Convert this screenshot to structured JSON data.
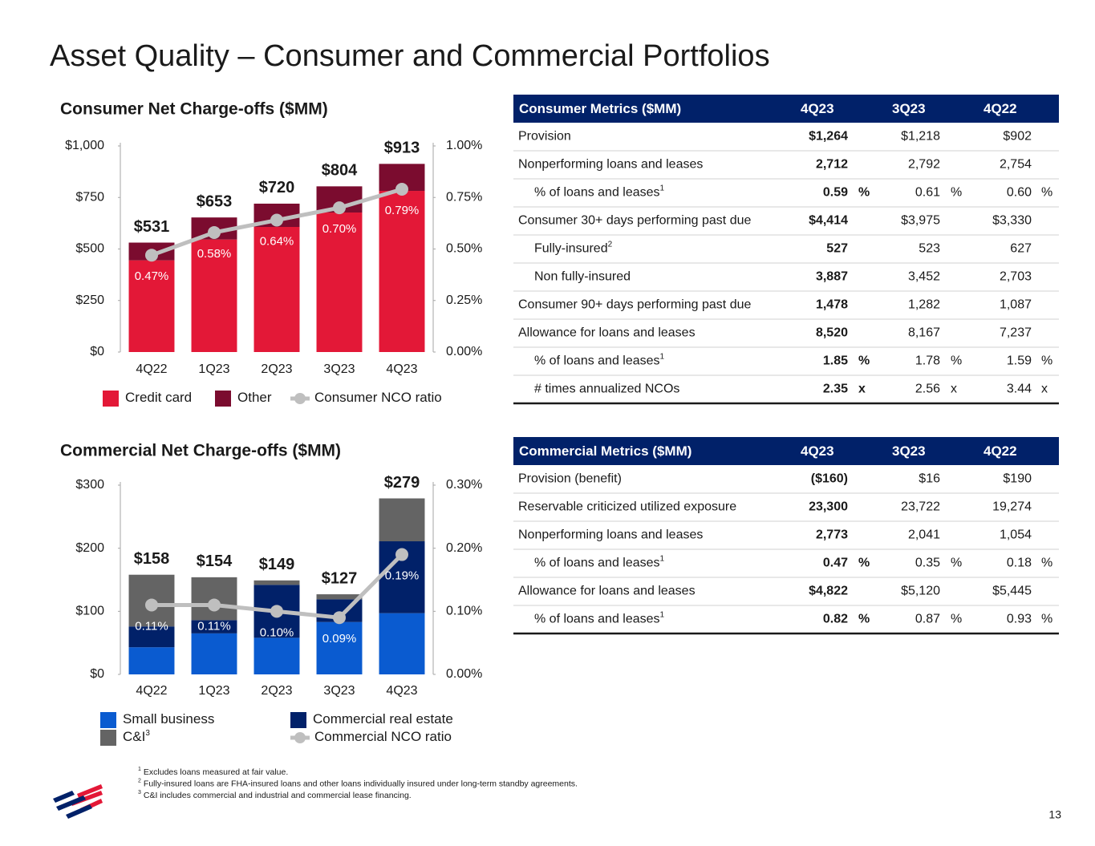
{
  "title": "Asset Quality – Consumer and Commercial Portfolios",
  "chart_data": [
    {
      "type": "bar",
      "stacked": true,
      "title": "Consumer Net Charge-offs ($MM)",
      "categories": [
        "4Q22",
        "1Q23",
        "2Q23",
        "3Q23",
        "4Q23"
      ],
      "series": [
        {
          "name": "Credit card",
          "color": "#e31837",
          "values": [
            445,
            546,
            607,
            677,
            782
          ]
        },
        {
          "name": "Other",
          "color": "#7b0c2f",
          "values": [
            86,
            107,
            113,
            127,
            131
          ]
        },
        {
          "name": "Consumer NCO ratio",
          "type": "line",
          "axis": "y2",
          "color": "#bfbfbf",
          "values": [
            0.47,
            0.58,
            0.64,
            0.7,
            0.79
          ],
          "value_labels": [
            "0.47%",
            "0.58%",
            "0.64%",
            "0.70%",
            "0.79%"
          ]
        }
      ],
      "totals": [
        531,
        653,
        720,
        804,
        913
      ],
      "total_labels": [
        "$531",
        "$653",
        "$720",
        "$804",
        "$913"
      ],
      "ylim": [
        0,
        1000
      ],
      "yticks": [
        {
          "value": 0,
          "label": "$0"
        },
        {
          "value": 250,
          "label": "$250"
        },
        {
          "value": 500,
          "label": "$500"
        },
        {
          "value": 750,
          "label": "$750"
        },
        {
          "value": 1000,
          "label": "$1,000"
        }
      ],
      "y2lim": [
        0,
        1
      ],
      "y2ticks": [
        {
          "value": 0,
          "label": "0.00%"
        },
        {
          "value": 0.25,
          "label": "0.25%"
        },
        {
          "value": 0.5,
          "label": "0.50%"
        },
        {
          "value": 0.75,
          "label": "0.75%"
        },
        {
          "value": 1,
          "label": "1.00%"
        }
      ]
    },
    {
      "type": "bar",
      "stacked": true,
      "title": "Commercial Net Charge-offs ($MM)",
      "categories": [
        "4Q22",
        "1Q23",
        "2Q23",
        "3Q23",
        "4Q23"
      ],
      "series": [
        {
          "name": "Small business",
          "color": "#0a5bd0",
          "values": [
            43,
            65,
            58,
            83,
            97
          ]
        },
        {
          "name": "Commercial real estate",
          "color": "#012169",
          "values": [
            33,
            21,
            84,
            36,
            114
          ]
        },
        {
          "name": "C&I",
          "note": "3",
          "color": "#646464",
          "values": [
            82,
            68,
            7,
            8,
            68
          ]
        },
        {
          "name": "Commercial NCO ratio",
          "type": "line",
          "axis": "y2",
          "color": "#bfbfbf",
          "values": [
            0.11,
            0.11,
            0.1,
            0.09,
            0.19
          ],
          "value_labels": [
            "0.11%",
            "0.11%",
            "0.10%",
            "0.09%",
            "0.19%"
          ]
        }
      ],
      "totals": [
        158,
        154,
        149,
        127,
        279
      ],
      "total_labels": [
        "$158",
        "$154",
        "$149",
        "$127",
        "$279"
      ],
      "ylim": [
        0,
        300
      ],
      "yticks": [
        {
          "value": 0,
          "label": "$0"
        },
        {
          "value": 100,
          "label": "$100"
        },
        {
          "value": 200,
          "label": "$200"
        },
        {
          "value": 300,
          "label": "$300"
        }
      ],
      "y2lim": [
        0,
        0.3
      ],
      "y2ticks": [
        {
          "value": 0,
          "label": "0.00%"
        },
        {
          "value": 0.1,
          "label": "0.10%"
        },
        {
          "value": 0.2,
          "label": "0.20%"
        },
        {
          "value": 0.3,
          "label": "0.30%"
        }
      ]
    }
  ],
  "tables": [
    {
      "header": [
        "Consumer Metrics ($MM)",
        "4Q23",
        "3Q23",
        "4Q22"
      ],
      "rows": [
        {
          "label": "Provision",
          "values": [
            "$1,264",
            "$1,218",
            "$902"
          ]
        },
        {
          "label": "Nonperforming loans and leases",
          "values": [
            "2,712",
            "2,792",
            "2,754"
          ]
        },
        {
          "label": "% of loans and leases",
          "note": "1",
          "indent": true,
          "values": [
            "0.59",
            "0.61",
            "0.60"
          ],
          "unit": "%"
        },
        {
          "label": "Consumer 30+ days performing past due",
          "values": [
            "$4,414",
            "$3,975",
            "$3,330"
          ]
        },
        {
          "label": "Fully-insured",
          "note": "2",
          "indent": true,
          "values": [
            "527",
            "523",
            "627"
          ]
        },
        {
          "label": "Non fully-insured",
          "indent": true,
          "values": [
            "3,887",
            "3,452",
            "2,703"
          ]
        },
        {
          "label": "Consumer 90+ days performing past due",
          "values": [
            "1,478",
            "1,282",
            "1,087"
          ]
        },
        {
          "label": "Allowance for loans and leases",
          "values": [
            "8,520",
            "8,167",
            "7,237"
          ]
        },
        {
          "label": "% of loans and leases",
          "note": "1",
          "indent": true,
          "values": [
            "1.85",
            "1.78",
            "1.59"
          ],
          "unit": "%"
        },
        {
          "label": "# times annualized NCOs",
          "indent": true,
          "values": [
            "2.35",
            "2.56",
            "3.44"
          ],
          "unit": "x"
        }
      ]
    },
    {
      "header": [
        "Commercial Metrics ($MM)",
        "4Q23",
        "3Q23",
        "4Q22"
      ],
      "rows": [
        {
          "label": "Provision (benefit)",
          "values": [
            "($160)",
            "$16",
            "$190"
          ]
        },
        {
          "label": "Reservable criticized utilized exposure",
          "values": [
            "23,300",
            "23,722",
            "19,274"
          ]
        },
        {
          "label": "Nonperforming loans and leases",
          "values": [
            "2,773",
            "2,041",
            "1,054"
          ]
        },
        {
          "label": "% of loans and leases",
          "note": "1",
          "indent": true,
          "values": [
            "0.47",
            "0.35",
            "0.18"
          ],
          "unit": "%"
        },
        {
          "label": "Allowance for loans and leases",
          "values": [
            "$4,822",
            "$5,120",
            "$5,445"
          ]
        },
        {
          "label": "% of loans and leases",
          "note": "1",
          "indent": true,
          "values": [
            "0.82",
            "0.87",
            "0.93"
          ],
          "unit": "%"
        }
      ]
    }
  ],
  "footnotes": [
    {
      "marker": "1",
      "text": "Excludes loans measured at fair value."
    },
    {
      "marker": "2",
      "text": "Fully-insured loans are FHA-insured loans and other loans individually insured under long-term standby agreements."
    },
    {
      "marker": "3",
      "text": "C&I includes commercial and industrial and commercial lease financing."
    }
  ],
  "page_number": "13"
}
